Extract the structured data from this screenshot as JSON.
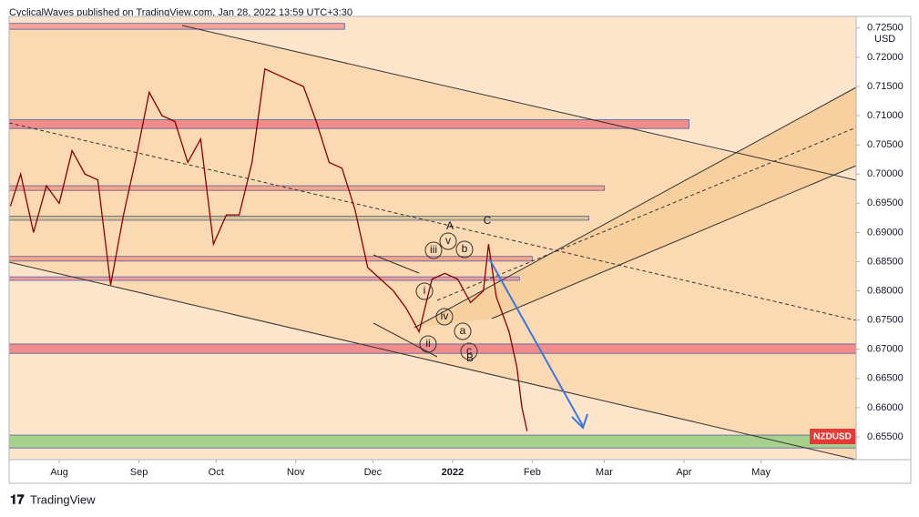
{
  "header": "CyclicalWaves published on TradingView.com, Jan 28, 2022 13:59 UTC+3:30",
  "footer": "TradingView",
  "chart_data": {
    "type": "line",
    "symbol": "NZDUSD",
    "currency": "USD",
    "x": [
      -19,
      -15,
      -10,
      -5,
      0,
      5,
      10,
      15,
      20,
      25,
      30,
      35,
      40,
      45,
      50,
      55,
      60,
      65,
      70,
      75,
      80,
      85,
      90,
      95,
      100,
      105,
      110,
      115,
      120,
      125,
      130,
      135,
      140,
      145,
      150,
      155,
      160,
      165,
      167,
      170,
      175,
      178,
      180,
      182
    ],
    "series": [
      {
        "name": "NZDUSD",
        "color": "#8b0000",
        "values": [
          0.6945,
          0.7,
          0.69,
          0.698,
          0.695,
          0.704,
          0.7,
          0.699,
          0.681,
          0.693,
          0.703,
          0.714,
          0.71,
          0.709,
          0.702,
          0.706,
          0.688,
          0.693,
          0.693,
          0.702,
          0.718,
          0.717,
          0.716,
          0.715,
          0.709,
          0.702,
          0.701,
          0.694,
          0.684,
          0.682,
          0.68,
          0.677,
          0.673,
          0.682,
          0.683,
          0.682,
          0.678,
          0.68,
          0.688,
          0.679,
          0.673,
          0.667,
          0.66,
          0.656
        ]
      }
    ],
    "xlim": [
      -19.5,
      310
    ],
    "xticks": [
      {
        "value": 0,
        "label": "Aug"
      },
      {
        "value": 31,
        "label": "Sep"
      },
      {
        "value": 61,
        "label": "Oct"
      },
      {
        "value": 92,
        "label": "Nov"
      },
      {
        "value": 122,
        "label": "Dec"
      },
      {
        "value": 153,
        "label": "2022"
      },
      {
        "value": 184,
        "label": "Feb"
      },
      {
        "value": 212,
        "label": "Mar"
      },
      {
        "value": 243,
        "label": "Apr"
      },
      {
        "value": 273,
        "label": "May"
      }
    ],
    "ylim": [
      0.6511,
      0.727
    ],
    "yticks": [
      {
        "value": 0.655,
        "label": "0.65500"
      },
      {
        "value": 0.66,
        "label": "0.66000"
      },
      {
        "value": 0.665,
        "label": "0.66500"
      },
      {
        "value": 0.67,
        "label": "0.67000"
      },
      {
        "value": 0.675,
        "label": "0.67500"
      },
      {
        "value": 0.68,
        "label": "0.68000"
      },
      {
        "value": 0.685,
        "label": "0.68500"
      },
      {
        "value": 0.69,
        "label": "0.69000"
      },
      {
        "value": 0.695,
        "label": "0.69500"
      },
      {
        "value": 0.7,
        "label": "0.70000"
      },
      {
        "value": 0.705,
        "label": "0.70500"
      },
      {
        "value": 0.71,
        "label": "0.71000"
      },
      {
        "value": 0.715,
        "label": "0.71500"
      },
      {
        "value": 0.72,
        "label": "0.72000"
      },
      {
        "value": 0.725,
        "label": "0.72500"
      }
    ],
    "zones": [
      {
        "low": 0.7248,
        "high": 0.7258,
        "x_end": 111,
        "color": "#f4a49a"
      },
      {
        "low": 0.7078,
        "high": 0.7093,
        "x_end": 245,
        "color": "#f08c8c"
      },
      {
        "low": 0.6972,
        "high": 0.698,
        "x_end": 212,
        "color": "#f6a48a"
      },
      {
        "low": 0.6921,
        "high": 0.6928,
        "x_end": 206,
        "color": "#d9c48c"
      },
      {
        "low": 0.6851,
        "high": 0.6859,
        "x_end": 184,
        "color": "#f6a48a"
      },
      {
        "low": 0.6818,
        "high": 0.6824,
        "x_end": 179,
        "color": "#f0a0a0"
      },
      {
        "low": 0.6693,
        "high": 0.6709,
        "x_end": 310,
        "color": "#f08c8c"
      },
      {
        "low": 0.6531,
        "high": 0.6553,
        "x_end": 310,
        "color": "#a8d08d"
      }
    ],
    "annotations": [
      "A",
      "B",
      "C",
      "i",
      "ii",
      "iii",
      "iv",
      "v",
      "a",
      "b",
      "c"
    ]
  }
}
